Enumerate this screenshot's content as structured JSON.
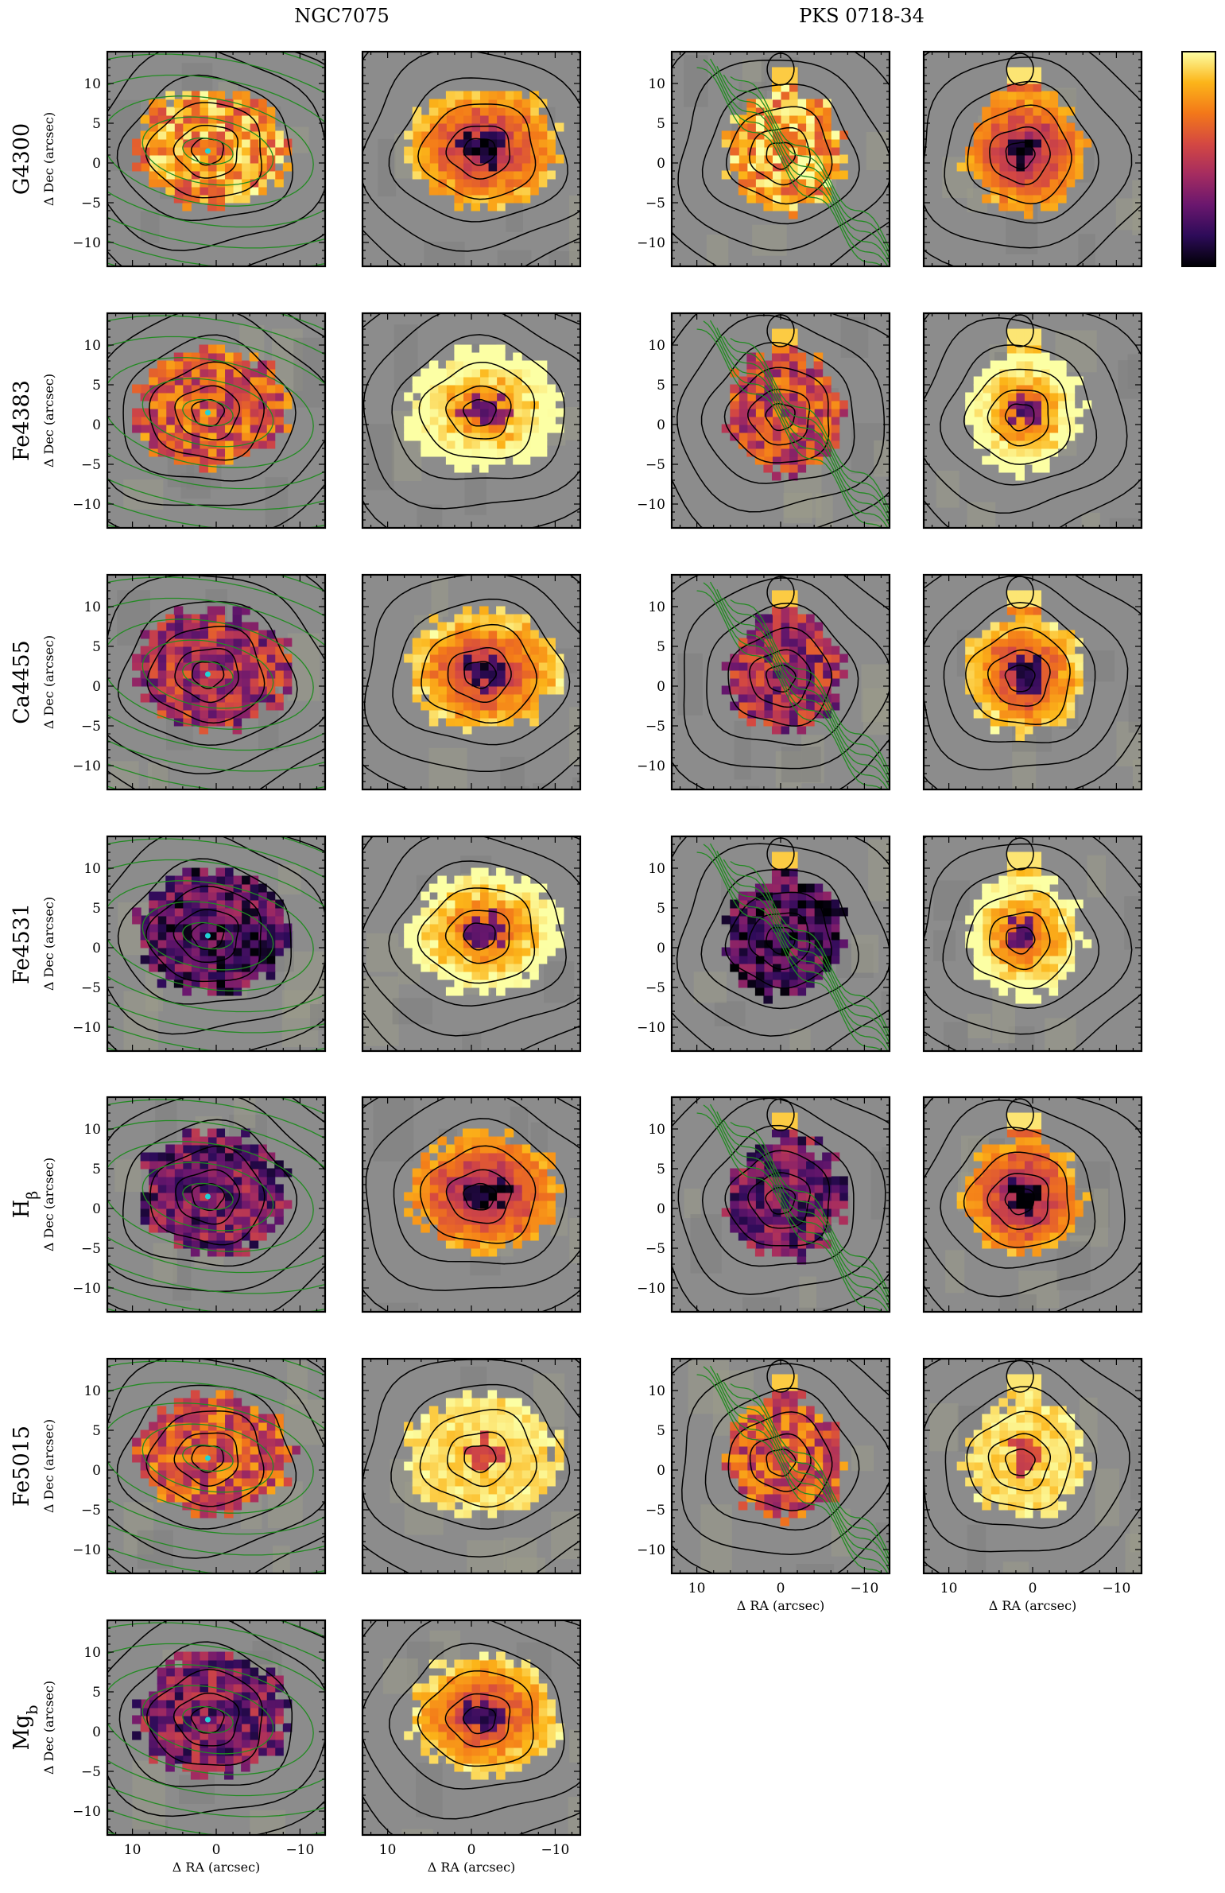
{
  "figure": {
    "columns": [
      {
        "title": "NGC7075"
      },
      {
        "title": "PKS 0718-34"
      }
    ],
    "rows": [
      {
        "label": "G4300",
        "html": "G4300"
      },
      {
        "label": "Fe4383",
        "html": "Fe4383"
      },
      {
        "label": "Ca4455",
        "html": "Ca4455"
      },
      {
        "label": "Fe4531",
        "html": "Fe4531"
      },
      {
        "label": "H_beta",
        "html": "H<tspan baseline-shift=\"sub\" font-size=\"19\">β</tspan>"
      },
      {
        "label": "Fe5015",
        "html": "Fe5015"
      },
      {
        "label": "Mg_b",
        "html": "Mg<tspan baseline-shift=\"sub\" font-size=\"19\">b</tspan>"
      }
    ],
    "ylabel": "Δ Dec (arcsec)",
    "xlabel": "Δ RA (arcsec)",
    "colors": {
      "background": "#8c8c8c",
      "contour_black": "#000000",
      "contour_green": "#228b22",
      "center_marker": "#22d3d6",
      "colormap": [
        "#000004",
        "#2d0b59",
        "#6a176e",
        "#a52c60",
        "#d44842",
        "#f37819",
        "#fcb519",
        "#fcffa4"
      ]
    }
  },
  "chart_data": {
    "type": "heatmap",
    "title": "",
    "description_grid": "7 index rows x 4 panels; panels 1-2 NGC7075, panels 3-4 PKS 0718-34 (no Mg_b row)",
    "xlabel": "Δ RA (arcsec)",
    "ylabel": "Δ Dec (arcsec)",
    "xlim": [
      13,
      -13
    ],
    "ylim": [
      -13,
      14
    ],
    "x_ticks": [
      10,
      0,
      -10
    ],
    "y_ticks": [
      10,
      5,
      0,
      -5,
      -10
    ],
    "colorbar": {
      "placement": "top-right",
      "tick_labels": []
    },
    "panels": [
      {
        "galaxy": "NGC7075",
        "index": "G4300",
        "kind": "index",
        "center": [
          1,
          1.5
        ],
        "level": 0.78
      },
      {
        "galaxy": "NGC7075",
        "index": "G4300",
        "kind": "error",
        "center": [
          -1,
          1.5
        ],
        "level": 0.35
      },
      {
        "galaxy": "PKS 0718-34",
        "index": "G4300",
        "kind": "index",
        "center": [
          0,
          1
        ],
        "level": 0.82
      },
      {
        "galaxy": "PKS 0718-34",
        "index": "G4300",
        "kind": "error",
        "center": [
          1.5,
          1
        ],
        "level": 0.3
      },
      {
        "galaxy": "NGC7075",
        "index": "Fe4383",
        "kind": "index",
        "center": [
          1,
          1.5
        ],
        "level": 0.62
      },
      {
        "galaxy": "NGC7075",
        "index": "Fe4383",
        "kind": "error",
        "center": [
          -1,
          1.5
        ],
        "level": 0.6
      },
      {
        "galaxy": "PKS 0718-34",
        "index": "Fe4383",
        "kind": "index",
        "center": [
          0,
          1
        ],
        "level": 0.55
      },
      {
        "galaxy": "PKS 0718-34",
        "index": "Fe4383",
        "kind": "error",
        "center": [
          1.5,
          1
        ],
        "level": 0.58
      },
      {
        "galaxy": "NGC7075",
        "index": "Ca4455",
        "kind": "index",
        "center": [
          1,
          1.5
        ],
        "level": 0.45
      },
      {
        "galaxy": "NGC7075",
        "index": "Ca4455",
        "kind": "error",
        "center": [
          -1,
          1.5
        ],
        "level": 0.4
      },
      {
        "galaxy": "PKS 0718-34",
        "index": "Ca4455",
        "kind": "index",
        "center": [
          0,
          1
        ],
        "level": 0.42
      },
      {
        "galaxy": "PKS 0718-34",
        "index": "Ca4455",
        "kind": "error",
        "center": [
          1.5,
          1
        ],
        "level": 0.4
      },
      {
        "galaxy": "NGC7075",
        "index": "Fe4531",
        "kind": "index",
        "center": [
          1,
          1.5
        ],
        "level": 0.22
      },
      {
        "galaxy": "NGC7075",
        "index": "Fe4531",
        "kind": "error",
        "center": [
          -1,
          1.5
        ],
        "level": 0.55
      },
      {
        "galaxy": "PKS 0718-34",
        "index": "Fe4531",
        "kind": "index",
        "center": [
          0,
          1
        ],
        "level": 0.2
      },
      {
        "galaxy": "PKS 0718-34",
        "index": "Fe4531",
        "kind": "error",
        "center": [
          1.5,
          1
        ],
        "level": 0.55
      },
      {
        "galaxy": "NGC7075",
        "index": "H_beta",
        "kind": "index",
        "center": [
          1,
          1.5
        ],
        "level": 0.3
      },
      {
        "galaxy": "NGC7075",
        "index": "H_beta",
        "kind": "error",
        "center": [
          -1,
          1.5
        ],
        "level": 0.3
      },
      {
        "galaxy": "PKS 0718-34",
        "index": "H_beta",
        "kind": "index",
        "center": [
          0,
          1
        ],
        "level": 0.3
      },
      {
        "galaxy": "PKS 0718-34",
        "index": "H_beta",
        "kind": "error",
        "center": [
          1.5,
          1
        ],
        "level": 0.3
      },
      {
        "galaxy": "NGC7075",
        "index": "Fe5015",
        "kind": "index",
        "center": [
          1,
          1.5
        ],
        "level": 0.6
      },
      {
        "galaxy": "NGC7075",
        "index": "Fe5015",
        "kind": "error",
        "center": [
          -1,
          1.5
        ],
        "level": 0.9
      },
      {
        "galaxy": "PKS 0718-34",
        "index": "Fe5015",
        "kind": "index",
        "center": [
          0,
          1
        ],
        "level": 0.6
      },
      {
        "galaxy": "PKS 0718-34",
        "index": "Fe5015",
        "kind": "error",
        "center": [
          1.5,
          1
        ],
        "level": 0.9
      },
      {
        "galaxy": "NGC7075",
        "index": "Mg_b",
        "kind": "index",
        "center": [
          1,
          1.5
        ],
        "level": 0.32
      },
      {
        "galaxy": "NGC7075",
        "index": "Mg_b",
        "kind": "error",
        "center": [
          -1,
          1.5
        ],
        "level": 0.42
      }
    ]
  }
}
